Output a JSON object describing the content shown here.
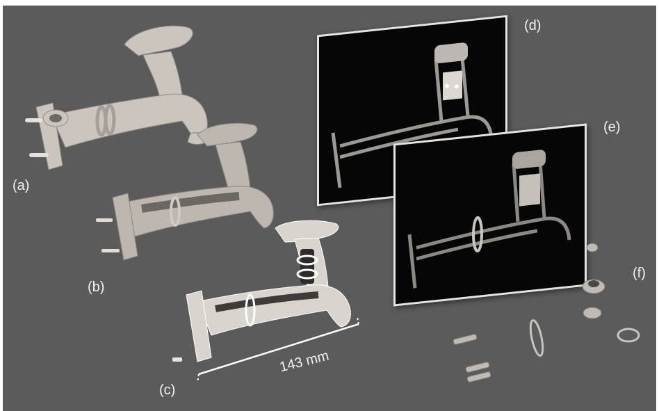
{
  "figure": {
    "panel_labels": {
      "a": "(a)",
      "b": "(b)",
      "c": "(c)",
      "d": "(d)",
      "e": "(e)",
      "f": "(f)"
    },
    "dimension_label": "143 mm"
  },
  "colors": {
    "background": "#5b5b5b",
    "faucet_surface": "#c9c3bc",
    "slice_panel_bg": "#060606",
    "panel_border": "#e4e4e4",
    "label_text": "#f2f2f2"
  }
}
